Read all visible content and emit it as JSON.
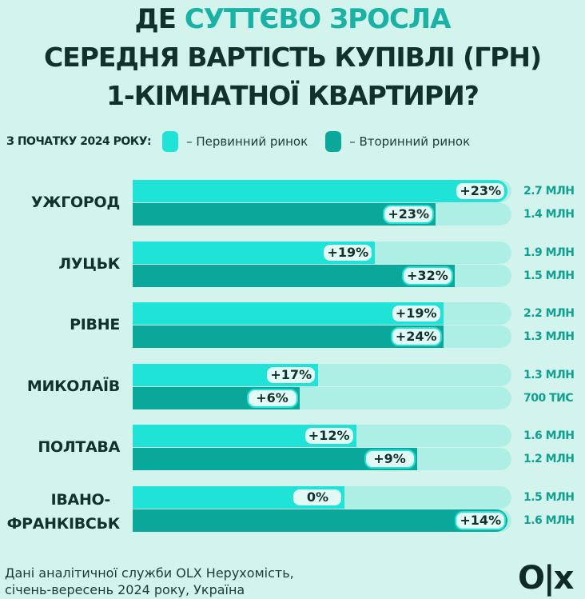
{
  "title": {
    "line1_plain": "ДЕ ",
    "line1_accent": "СУТТЄВО ЗРОСЛА",
    "line2": "СЕРЕДНЯ ВАРТІСТЬ КУПІВЛІ (ГРН)",
    "line3": "1-КІМНАТНОЇ КВАРТИРИ?"
  },
  "legend": {
    "label": "З ПОЧАТКУ 2024 РОКУ:",
    "items": [
      {
        "name": "– Первинний ринок",
        "color": "#1ee3d6"
      },
      {
        "name": "– Вторинний ринок",
        "color": "#0aa89a"
      }
    ]
  },
  "colors": {
    "background": "#d3f4ed",
    "primary": "#1ee3d6",
    "secondary": "#0aa89a",
    "track": "#aeefe5",
    "accent": "#19b2a4"
  },
  "chart_data": {
    "type": "bar",
    "orientation": "horizontal",
    "categories": [
      "УЖГОРОД",
      "ЛУЦЬК",
      "РІВНЕ",
      "МИКОЛАЇВ",
      "ПОЛТАВА",
      "ІВАНО-ФРАНКІВСЬК"
    ],
    "series": [
      {
        "name": "Первинний ринок",
        "growth": [
          "+23%",
          "+19%",
          "+19%",
          "+17%",
          "+12%",
          "0%"
        ],
        "price": [
          "2.7 МЛН",
          "1.9 МЛН",
          "2.2 МЛН",
          "1.3 МЛН",
          "1.6 МЛН",
          "1.5 МЛН"
        ],
        "bar_fill": [
          0.99,
          0.64,
          0.82,
          0.49,
          0.59,
          0.56
        ]
      },
      {
        "name": "Вторинний ринок",
        "growth": [
          "+23%",
          "+32%",
          "+24%",
          "+6%",
          "+9%",
          "+14%"
        ],
        "price": [
          "1.4 МЛН",
          "1.5 МЛН",
          "1.3 МЛН",
          "700 ТИС",
          "1.2 МЛН",
          "1.6 МЛН"
        ],
        "bar_fill": [
          0.8,
          0.85,
          0.82,
          0.44,
          0.75,
          0.99
        ]
      }
    ]
  },
  "footer": {
    "line1": "Дані аналітичної служби OLX Нерухомість,",
    "line2": "січень-вересень 2024 року, Україна"
  },
  "logo": "OLX"
}
